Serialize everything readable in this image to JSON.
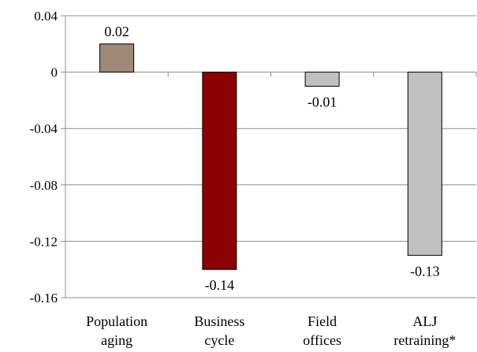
{
  "chart_data": {
    "type": "bar",
    "categories": [
      [
        "Population",
        "aging"
      ],
      [
        "Business",
        "cycle"
      ],
      [
        "Field",
        "offices"
      ],
      [
        "ALJ",
        "retraining*"
      ]
    ],
    "values": [
      0.02,
      -0.14,
      -0.01,
      -0.13
    ],
    "data_labels": [
      "0.02",
      "-0.14",
      "-0.01",
      "-0.13"
    ],
    "bar_colors": [
      "#a08a77",
      "#8b0000",
      "#c0c0c0",
      "#c0c0c0"
    ],
    "ylim": [
      -0.16,
      0.04
    ],
    "yticks": [
      0.04,
      0,
      -0.04,
      -0.08,
      -0.12,
      -0.16
    ],
    "ytick_labels": [
      "0.04",
      "0",
      "-0.04",
      "-0.08",
      "-0.12",
      "-0.16"
    ],
    "grid": true,
    "title": "",
    "xlabel": "",
    "ylabel": ""
  }
}
